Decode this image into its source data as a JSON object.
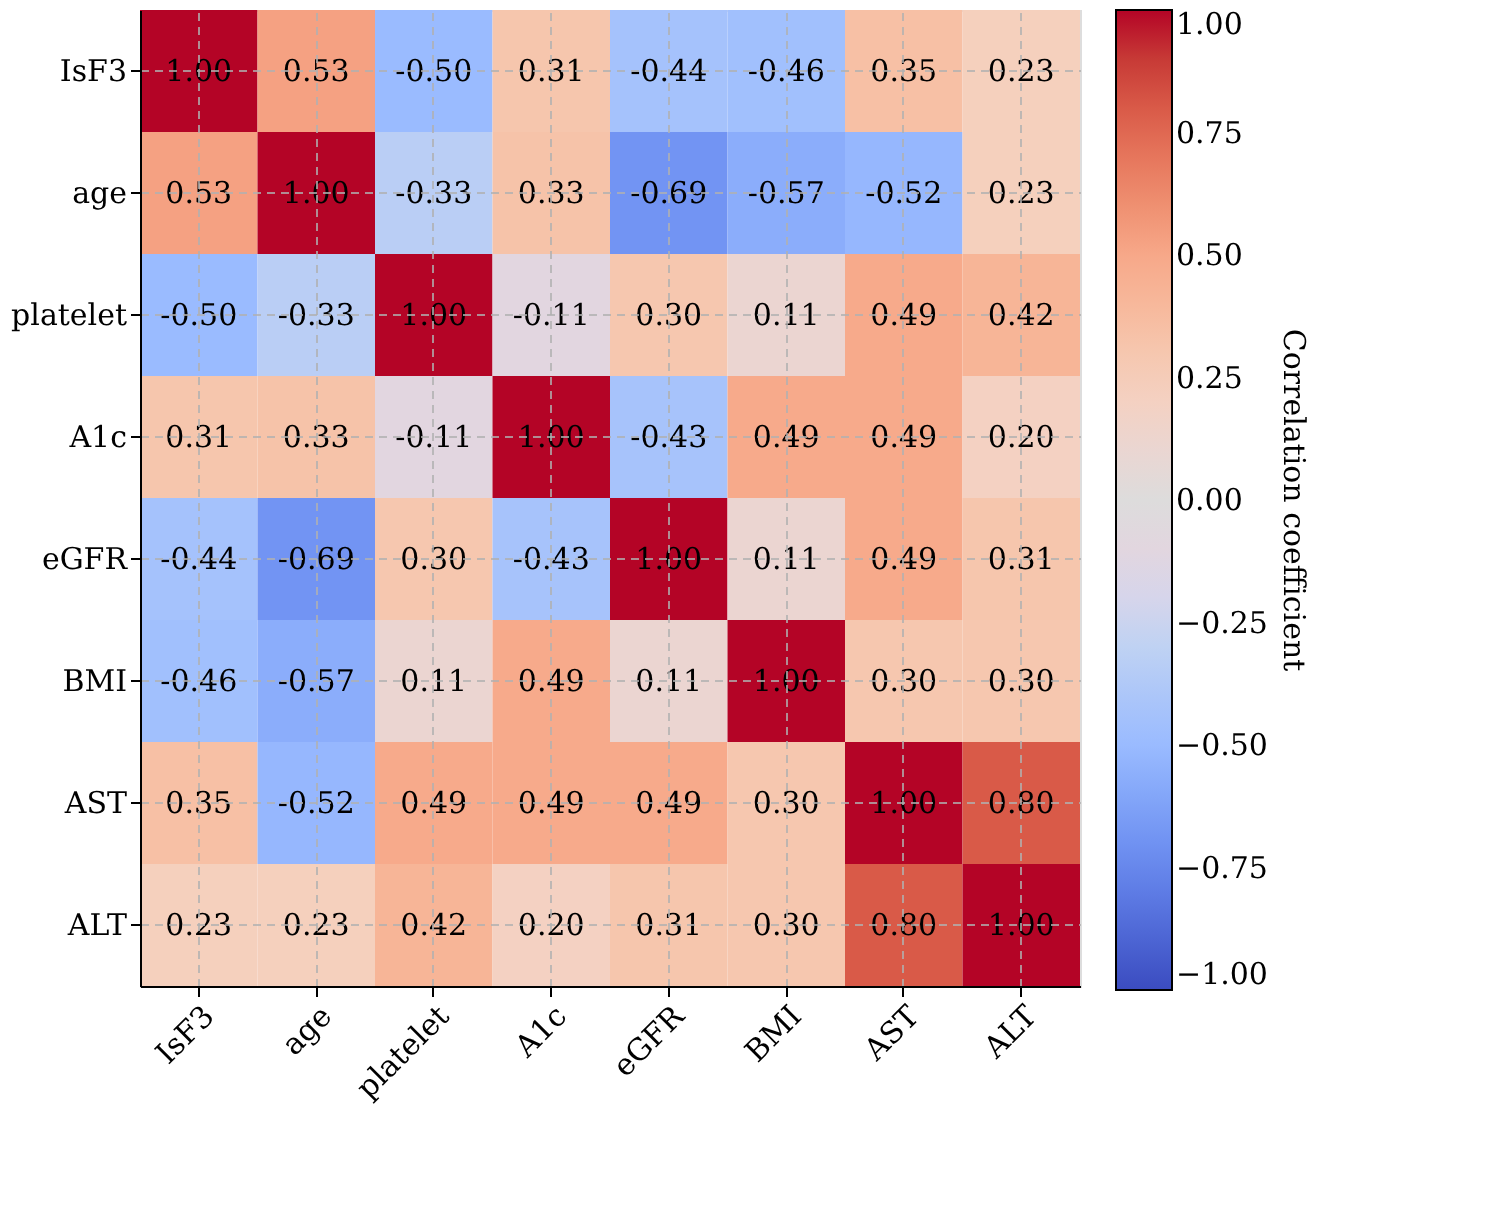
{
  "chart_data": {
    "type": "heatmap",
    "categories": [
      "IsF3",
      "age",
      "platelet",
      "A1c",
      "eGFR",
      "BMI",
      "AST",
      "ALT"
    ],
    "y_categories": [
      "IsF3",
      "age",
      "platelet",
      "A1c",
      "eGFR",
      "BMI",
      "AST",
      "ALT"
    ],
    "cells": [
      [
        1.0,
        0.53,
        -0.5,
        0.31,
        -0.44,
        -0.46,
        0.35,
        0.23
      ],
      [
        0.53,
        1.0,
        -0.33,
        0.33,
        -0.69,
        -0.57,
        -0.52,
        0.23
      ],
      [
        -0.5,
        -0.33,
        1.0,
        -0.11,
        0.3,
        0.11,
        0.49,
        0.42
      ],
      [
        0.31,
        0.33,
        -0.11,
        1.0,
        -0.43,
        0.49,
        0.49,
        0.2
      ],
      [
        -0.44,
        -0.69,
        0.3,
        -0.43,
        1.0,
        0.11,
        0.49,
        0.31
      ],
      [
        -0.46,
        -0.57,
        0.11,
        0.49,
        0.11,
        1.0,
        0.3,
        0.3
      ],
      [
        0.35,
        -0.52,
        0.49,
        0.49,
        0.49,
        0.3,
        1.0,
        0.8
      ],
      [
        0.23,
        0.23,
        0.42,
        0.2,
        0.31,
        0.3,
        0.8,
        1.0
      ]
    ],
    "clabel": "Correlation coefficient",
    "clim": [
      -1.0,
      1.0
    ],
    "cticks": [
      {
        "value": -1.0,
        "label": "−1.00"
      },
      {
        "value": -0.75,
        "label": "−0.75"
      },
      {
        "value": -0.5,
        "label": "−0.50"
      },
      {
        "value": -0.25,
        "label": "−0.25"
      },
      {
        "value": 0.0,
        "label": "0.00"
      },
      {
        "value": 0.25,
        "label": "0.25"
      },
      {
        "value": 0.5,
        "label": "0.50"
      },
      {
        "value": 0.75,
        "label": "0.75"
      },
      {
        "value": 1.0,
        "label": "1.00"
      }
    ],
    "cell_labels": [
      [
        "1.00",
        "0.53",
        "-0.50",
        "0.31",
        "-0.44",
        "-0.46",
        "0.35",
        "0.23"
      ],
      [
        "0.53",
        "1.00",
        "-0.33",
        "0.33",
        "-0.69",
        "-0.57",
        "-0.52",
        "0.23"
      ],
      [
        "-0.50",
        "-0.33",
        "1.00",
        "-0.11",
        "0.30",
        "0.11",
        "0.49",
        "0.42"
      ],
      [
        "0.31",
        "0.33",
        "-0.11",
        "1.00",
        "-0.43",
        "0.49",
        "0.49",
        "0.20"
      ],
      [
        "-0.44",
        "-0.69",
        "0.30",
        "-0.43",
        "1.00",
        "0.11",
        "0.49",
        "0.31"
      ],
      [
        "-0.46",
        "-0.57",
        "0.11",
        "0.49",
        "0.11",
        "1.00",
        "0.30",
        "0.30"
      ],
      [
        "0.35",
        "-0.52",
        "0.49",
        "0.49",
        "0.49",
        "0.30",
        "1.00",
        "0.80"
      ],
      [
        "0.23",
        "0.23",
        "0.42",
        "0.20",
        "0.31",
        "0.30",
        "0.80",
        "1.00"
      ]
    ],
    "grid": true
  }
}
